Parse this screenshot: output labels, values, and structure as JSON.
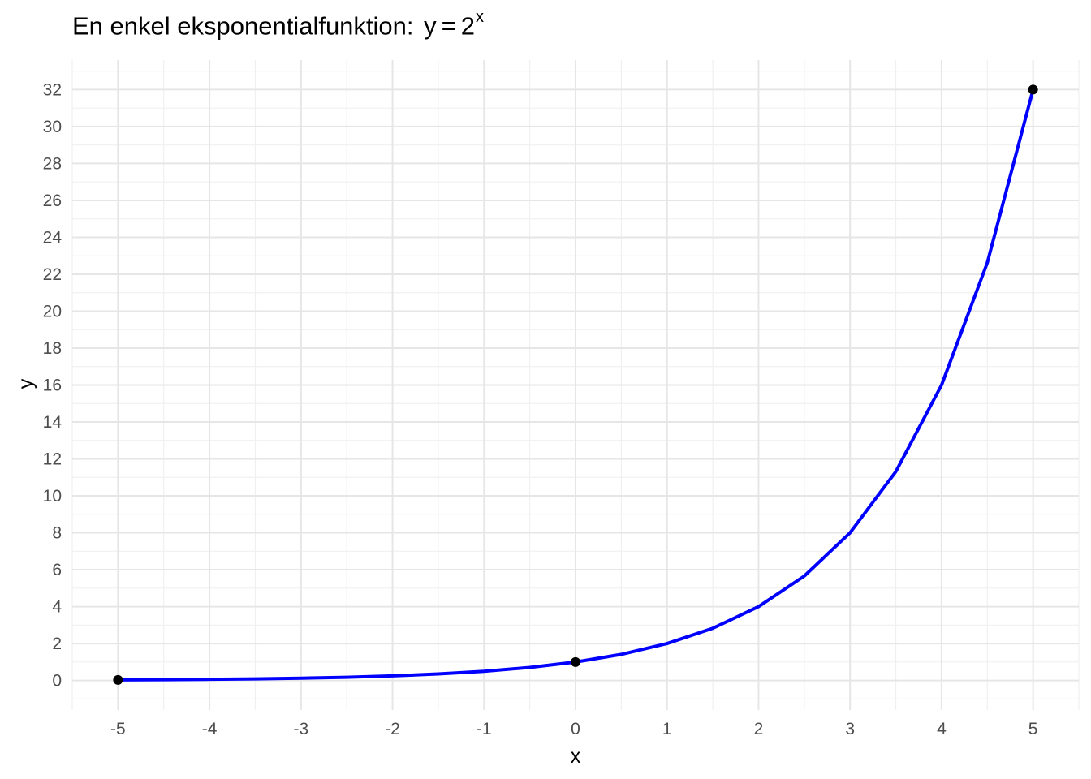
{
  "chart_data": {
    "type": "line",
    "title": {
      "text": "En enkel eksponentialfunktion:",
      "equation_lhs": "y",
      "equation_sign": "=",
      "equation_base": "2",
      "equation_exponent": "x"
    },
    "xlabel": "x",
    "ylabel": "y",
    "xlim": [
      -5.5,
      5.5
    ],
    "ylim": [
      -1.6,
      33.6
    ],
    "x_ticks": [
      -5,
      -4,
      -3,
      -2,
      -1,
      0,
      1,
      2,
      3,
      4,
      5
    ],
    "y_ticks": [
      0,
      2,
      4,
      6,
      8,
      10,
      12,
      14,
      16,
      18,
      20,
      22,
      24,
      26,
      28,
      30,
      32
    ],
    "grid": true,
    "series": [
      {
        "color": "#0000ff",
        "x": [
          -5,
          -4.5,
          -4,
          -3.5,
          -3,
          -2.5,
          -2,
          -1.5,
          -1,
          -0.5,
          0,
          0.5,
          1,
          1.5,
          2,
          2.5,
          3,
          3.5,
          4,
          4.5,
          5
        ],
        "values": [
          0.03125,
          0.0442,
          0.0625,
          0.0884,
          0.125,
          0.1768,
          0.25,
          0.3536,
          0.5,
          0.7071,
          1,
          1.4142,
          2,
          2.8284,
          4,
          5.6569,
          8,
          11.3137,
          16,
          22.6274,
          32
        ]
      }
    ],
    "points": {
      "color": "#000000",
      "x": [
        -5,
        0,
        5
      ],
      "values": [
        0.03125,
        1,
        32
      ]
    }
  }
}
